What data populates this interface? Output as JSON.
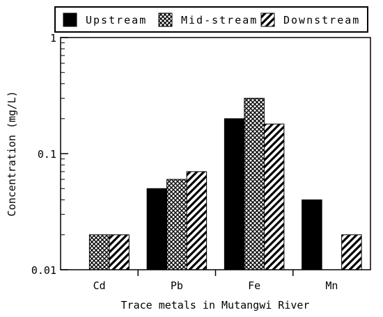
{
  "chart_data": {
    "type": "bar",
    "title": "",
    "xlabel": "Trace metals in Mutangwi River",
    "ylabel": "Concentration (mg/L)",
    "yscale": "log",
    "ylim": [
      0.01,
      1
    ],
    "yticks": [
      {
        "value": 0.01,
        "label": "0.01"
      },
      {
        "value": 0.1,
        "label": "0.1"
      },
      {
        "value": 1,
        "label": "1"
      }
    ],
    "categories": [
      "Cd",
      "Pb",
      "Fe",
      "Mn"
    ],
    "legend_position": "top",
    "grid": false,
    "series": [
      {
        "name": "Upstream",
        "pattern": "solid",
        "color": "#000000",
        "values": [
          null,
          0.05,
          0.2,
          0.04
        ]
      },
      {
        "name": "Mid-stream",
        "pattern": "crosshatch",
        "color": "#000000",
        "values": [
          0.02,
          0.06,
          0.3,
          null
        ]
      },
      {
        "name": "Downstream",
        "pattern": "diagonal",
        "color": "#000000",
        "values": [
          0.02,
          0.07,
          0.18,
          0.02
        ]
      }
    ]
  }
}
